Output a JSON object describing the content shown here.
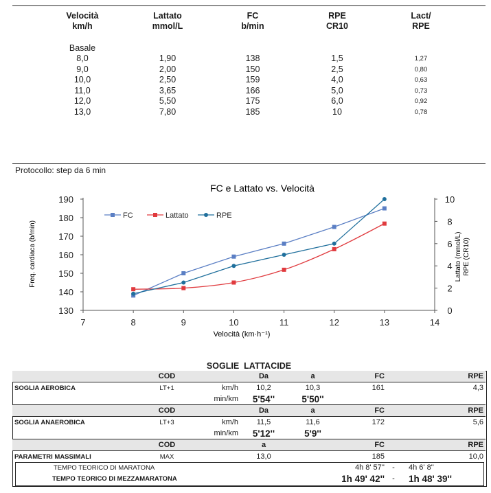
{
  "table": {
    "headers": [
      {
        "line1": "Velocità",
        "line2": "km/h"
      },
      {
        "line1": "Lattato",
        "line2": "mmol/L"
      },
      {
        "line1": "FC",
        "line2": "b/min"
      },
      {
        "line1": "RPE",
        "line2": "CR10"
      },
      {
        "line1": "Lact/",
        "line2": "RPE"
      }
    ],
    "basale_label": "Basale",
    "rows": [
      {
        "vel": "8,0",
        "lat": "1,90",
        "fc": "138",
        "rpe": "1,5",
        "lact_rpe": "1,27"
      },
      {
        "vel": "9,0",
        "lat": "2,00",
        "fc": "150",
        "rpe": "2,5",
        "lact_rpe": "0,80"
      },
      {
        "vel": "10,0",
        "lat": "2,50",
        "fc": "159",
        "rpe": "4,0",
        "lact_rpe": "0,63"
      },
      {
        "vel": "11,0",
        "lat": "3,65",
        "fc": "166",
        "rpe": "5,0",
        "lact_rpe": "0,73"
      },
      {
        "vel": "12,0",
        "lat": "5,50",
        "fc": "175",
        "rpe": "6,0",
        "lact_rpe": "0,92"
      },
      {
        "vel": "13,0",
        "lat": "7,80",
        "fc": "185",
        "rpe": "10",
        "lact_rpe": "0,78"
      }
    ]
  },
  "protocol_text": "Protocollo: step da 6 min",
  "chart_data": {
    "type": "line",
    "title": "FC e Lattato vs. Velocità",
    "xlabel": "Velocità (km·h⁻¹)",
    "ylabel_left": "Freq. cardiaca (b/min)",
    "ylabel_right_1": "Lattato (mmol/L)",
    "ylabel_right_2": "RPE (CR10)",
    "x": [
      8,
      9,
      10,
      11,
      12,
      13
    ],
    "xlim": [
      7,
      14
    ],
    "xticks": [
      "7",
      "8",
      "9",
      "10",
      "11",
      "12",
      "13",
      "14"
    ],
    "ylim_left": [
      130,
      190
    ],
    "yticks_left": [
      "130",
      "140",
      "150",
      "160",
      "170",
      "180",
      "190"
    ],
    "ylim_right": [
      0,
      10
    ],
    "yticks_right": [
      "0",
      "2",
      "4",
      "6",
      "8",
      "10"
    ],
    "legend_position": "top-left",
    "series": [
      {
        "name": "FC",
        "axis": "left",
        "color": "#5b7fc4",
        "marker": "square",
        "values": [
          138,
          150,
          159,
          166,
          175,
          185
        ]
      },
      {
        "name": "Lattato",
        "axis": "right",
        "color": "#e03a3e",
        "marker": "square",
        "values": [
          1.9,
          2.0,
          2.5,
          3.65,
          5.5,
          7.8
        ]
      },
      {
        "name": "RPE",
        "axis": "right",
        "color": "#1f6f9c",
        "marker": "circle",
        "values": [
          1.5,
          2.5,
          4.0,
          5.0,
          6.0,
          10
        ]
      }
    ]
  },
  "soglie": {
    "title": "SOGLIE  LATTACIDE",
    "col_cod": "COD",
    "col_da": "Da",
    "col_a": "a",
    "col_fc": "FC",
    "col_rpe": "RPE",
    "kmh": "km/h",
    "minkm": "min/km",
    "aerobica": {
      "label": "SOGLIA AEROBICA",
      "cod": "LT+1",
      "da": "10,2",
      "a": "10,3",
      "fc": "161",
      "rpe": "4,3",
      "pace_da": "5'54''",
      "pace_a": "5'50''"
    },
    "anaerobica": {
      "label": "SOGLIA ANAEROBICA",
      "cod": "LT+3",
      "da": "11,5",
      "a": "11,6",
      "fc": "172",
      "rpe": "5,6",
      "pace_da": "5'12''",
      "pace_a": "5'9''"
    },
    "massimali": {
      "label": "PARAMETRI MASSIMALI",
      "cod": "MAX",
      "a": "13,0",
      "fc": "185",
      "rpe": "10,0"
    },
    "maratona": {
      "label": "TEMPO TEORICO DI MARATONA",
      "t1": "4h 8' 57''",
      "sep": "-",
      "t2": "4h 6' 8''"
    },
    "mezza": {
      "label": "TEMPO TEORICO DI MEZZAMARATONA",
      "t1": "1h 49' 42''",
      "sep": "-",
      "t2": "1h 48' 39''"
    }
  }
}
